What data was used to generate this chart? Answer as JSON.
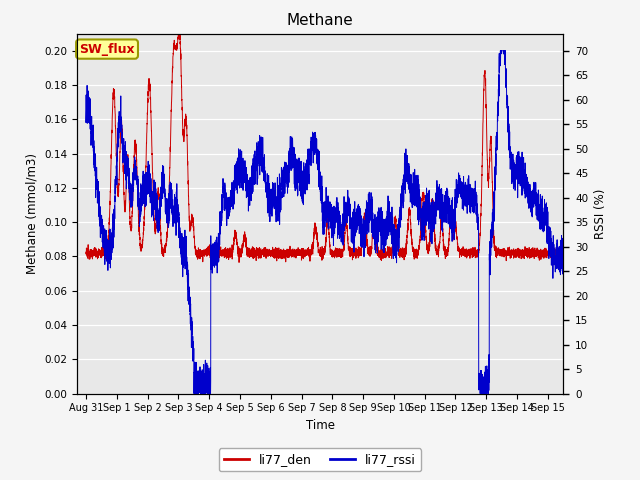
{
  "title": "Methane",
  "ylabel_left": "Methane (mmol/m3)",
  "ylabel_right": "RSSI (%)",
  "xlabel": "Time",
  "xlim_start": -0.3,
  "xlim_end": 15.5,
  "ylim_left": [
    0.0,
    0.21
  ],
  "ylim_right": [
    0.0,
    73.5
  ],
  "yticks_left": [
    0.0,
    0.02,
    0.04,
    0.06,
    0.08,
    0.1,
    0.12,
    0.14,
    0.16,
    0.18,
    0.2
  ],
  "yticks_right": [
    0,
    5,
    10,
    15,
    20,
    25,
    30,
    35,
    40,
    45,
    50,
    55,
    60,
    65,
    70
  ],
  "xtick_labels": [
    "Aug 31",
    "Sep 1",
    "Sep 2",
    "Sep 3",
    "Sep 4",
    "Sep 5",
    "Sep 6",
    "Sep 7",
    "Sep 8",
    "Sep 9",
    "Sep 10",
    "Sep 11",
    "Sep 12",
    "Sep 13",
    "Sep 14",
    "Sep 15"
  ],
  "xtick_positions": [
    0,
    1,
    2,
    3,
    4,
    5,
    6,
    7,
    8,
    9,
    10,
    11,
    12,
    13,
    14,
    15
  ],
  "color_den": "#cc0000",
  "color_rssi": "#0000cc",
  "bg_color": "#e8e8e8",
  "grid_color": "#ffffff",
  "legend_labels": [
    "li77_den",
    "li77_rssi"
  ],
  "sw_flux_label": "SW_flux",
  "sw_flux_bg": "#ffff99",
  "sw_flux_border": "#999900",
  "linewidth_den": 0.7,
  "linewidth_rssi": 0.7
}
